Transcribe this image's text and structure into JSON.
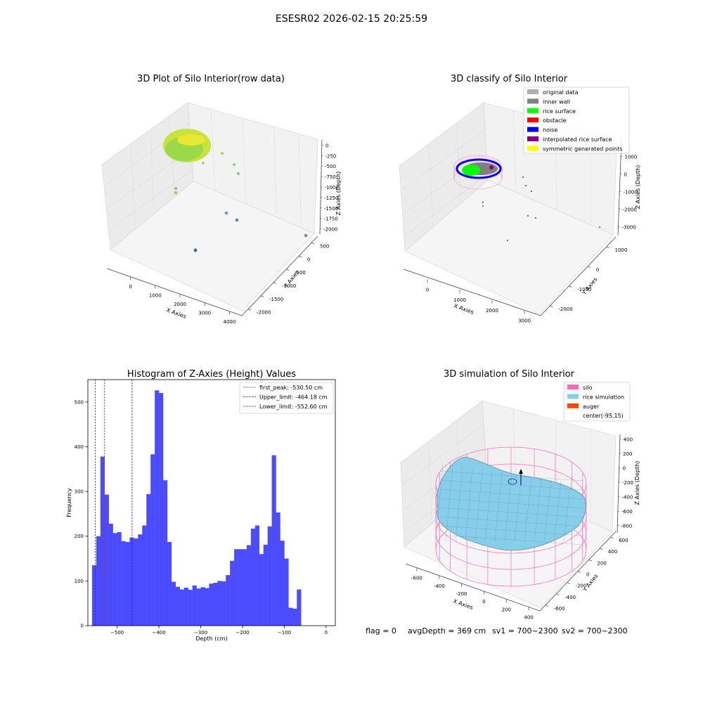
{
  "figure_title": "ESESR02 2026-02-15 20:25:59",
  "status_line": {
    "flag": "flag = 0",
    "avg": "avgDepth = 369 cm",
    "sv1": "sv1 = 700~2300",
    "sv2": "sv2 = 700~2300"
  },
  "chart_data": [
    {
      "type": "scatter",
      "title": "3D Plot of Silo Interior(row data)",
      "xlabel": "X Axies",
      "ylabel": "Y Axies",
      "zlabel": "Z Axies (Depth)",
      "x_ticks": [
        "0",
        "1000",
        "2000",
        "3000",
        "4000"
      ],
      "y_ticks": [
        "-2000",
        "-1500",
        "-1000",
        "-500",
        "0",
        "500"
      ],
      "z_ticks": [
        "0",
        "-250",
        "-500",
        "-750",
        "-1000",
        "-1250",
        "-1500",
        "-1750",
        "-2000"
      ],
      "colormap": [
        "#fde725",
        "#7ad151",
        "#22a884",
        "#2a788e",
        "#414487"
      ]
    },
    {
      "type": "scatter",
      "title": "3D classify of Silo Interior",
      "xlabel": "X Axies",
      "ylabel": "Y Axies",
      "zlabel": "Z Axies (Depth)",
      "x_ticks": [
        "0",
        "1000",
        "2000",
        "3000"
      ],
      "y_ticks": [
        "-2000",
        "-1000",
        "0",
        "1000"
      ],
      "z_ticks": [
        "1000",
        "0",
        "-1000",
        "-2000",
        "-3000"
      ],
      "legend": [
        {
          "label": "original data",
          "color": "#b0b0b0"
        },
        {
          "label": "inner wall",
          "color": "#808080"
        },
        {
          "label": "rice surface",
          "color": "#00ff00"
        },
        {
          "label": "obstacle",
          "color": "#ff0000"
        },
        {
          "label": "noise",
          "color": "#0000ff"
        },
        {
          "label": "interpolated rice surface",
          "color": "#800080"
        },
        {
          "label": "symmetric generated points",
          "color": "#ffff00"
        }
      ],
      "legend_position": "top-right"
    },
    {
      "type": "bar",
      "title": "Histogram of Z-Axies (Height) Values",
      "xlabel": "Depth (cm)",
      "ylabel": "Frequency",
      "xlim": [
        -570,
        22
      ],
      "ylim": [
        0,
        550
      ],
      "bin_start": -560,
      "bin_width": 10,
      "values": [
        135,
        200,
        378,
        293,
        228,
        207,
        209,
        189,
        187,
        197,
        195,
        204,
        224,
        294,
        383,
        526,
        520,
        325,
        187,
        98,
        87,
        81,
        85,
        80,
        90,
        83,
        86,
        84,
        94,
        96,
        100,
        99,
        113,
        145,
        171,
        171,
        171,
        180,
        217,
        224,
        160,
        181,
        222,
        381,
        253,
        190,
        150,
        40,
        38,
        81
      ],
      "x_ticks": [
        -500,
        -400,
        -300,
        -200,
        -100,
        0
      ],
      "x_tick_labels": [
        "−500",
        "−400",
        "−300",
        "−200",
        "−100",
        "0"
      ],
      "y_ticks": [
        0,
        100,
        200,
        300,
        400,
        500
      ],
      "bar_color": "#4b4bff",
      "lines": [
        {
          "label": "first_peak: -530.50 cm",
          "value": -530.5,
          "color": "#d62728"
        },
        {
          "label": "Upper_limit: -464.18 cm",
          "value": -464.18,
          "color": "#1f1fd0"
        },
        {
          "label": "Lower_limit: -552.60 cm",
          "value": -552.6,
          "color": "#1f1fd0"
        }
      ],
      "legend_position": "top-right"
    },
    {
      "type": "surface",
      "title": "3D simulation of Silo Interior",
      "xlabel": "X Axies",
      "ylabel": "Y Axies",
      "zlabel": "Z Axies (Depth)",
      "x_ticks": [
        "-600",
        "-400",
        "-200",
        "0",
        "200",
        "400"
      ],
      "y_ticks": [
        "-600",
        "-400",
        "-200",
        "0",
        "200",
        "400",
        "600"
      ],
      "z_ticks": [
        "400",
        "200",
        "0",
        "-200",
        "-400",
        "-600",
        "-800"
      ],
      "legend": [
        {
          "label": "silo",
          "color": "#ff69b4"
        },
        {
          "label": "rice simulation",
          "color": "#87ceeb"
        },
        {
          "label": "auger",
          "color": "#ff4500"
        },
        {
          "label": "center(-95,15)",
          "color": ""
        }
      ],
      "legend_position": "top-right"
    }
  ]
}
